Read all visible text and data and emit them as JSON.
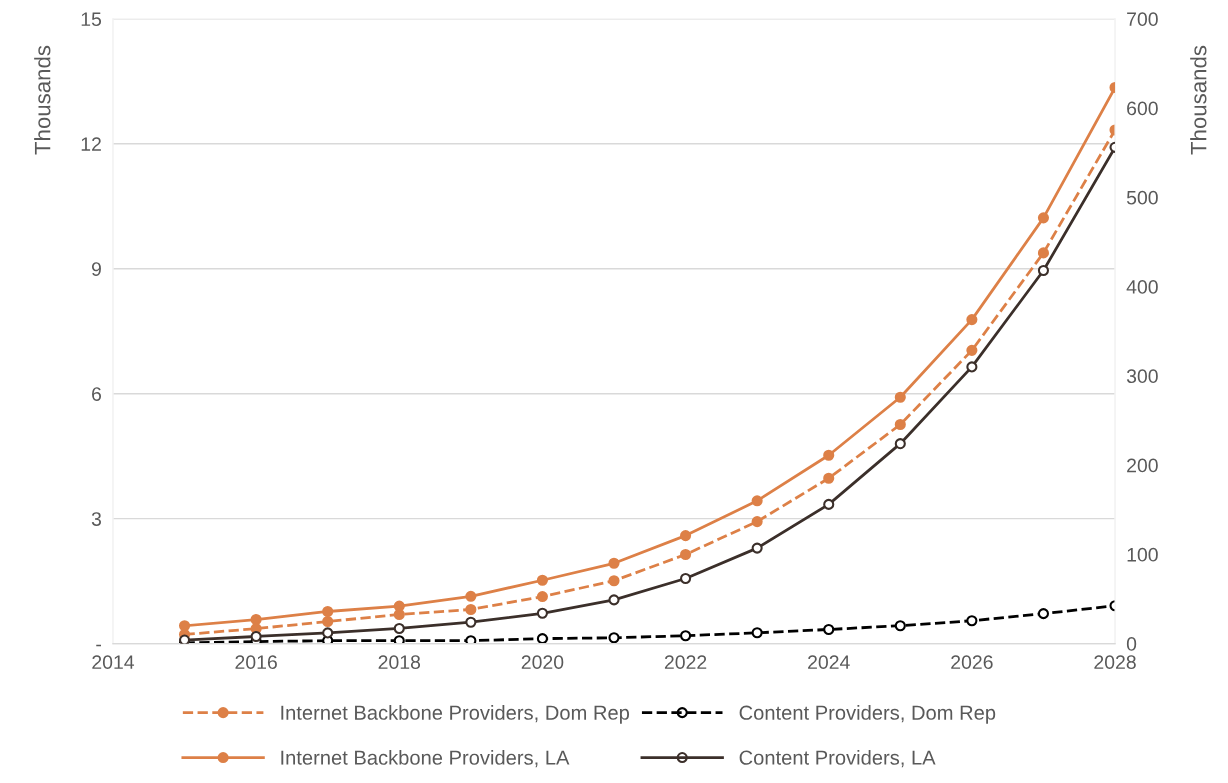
{
  "chart_data": {
    "type": "line",
    "x": [
      2015,
      2016,
      2017,
      2018,
      2019,
      2020,
      2021,
      2022,
      2023,
      2024,
      2025,
      2026,
      2027,
      2028
    ],
    "ylabel": "Thousands",
    "y2label": "Thousands",
    "xlim": [
      2014,
      2028
    ],
    "xticks": [
      2014,
      2016,
      2018,
      2020,
      2022,
      2024,
      2026,
      2028
    ],
    "ylim": [
      0,
      15
    ],
    "yticks": [
      {
        "value": 0,
        "label": "-"
      },
      3,
      6,
      9,
      12,
      15
    ],
    "y2lim": [
      0,
      700
    ],
    "y2ticks": [
      0,
      100,
      200,
      300,
      400,
      500,
      600,
      700
    ],
    "grid": "y",
    "legend": "bottom",
    "marker": "circle",
    "series": [
      {
        "name": "Internet Backbone Providers, Dom Rep",
        "color": "#dd8047",
        "line_style": "dashed",
        "values": [
          0.22,
          0.36,
          0.53,
          0.7,
          0.82,
          1.13,
          1.51,
          2.14,
          2.93,
          3.97,
          5.26,
          7.04,
          9.38,
          12.33
        ]
      },
      {
        "name": "Content Providers, Dom Rep",
        "color": "#000000",
        "line_style": "dashed",
        "values": [
          0.02,
          0.05,
          0.07,
          0.07,
          0.07,
          0.12,
          0.14,
          0.19,
          0.26,
          0.34,
          0.43,
          0.55,
          0.72,
          0.91
        ]
      },
      {
        "name": "Internet Backbone Providers, LA",
        "color": "#dd8047",
        "line_style": "solid",
        "axis": "y2",
        "values": [
          20,
          27,
          36,
          42,
          53,
          71,
          90,
          121,
          160,
          211,
          276,
          363,
          477,
          623
        ]
      },
      {
        "name": "Content Providers, LA",
        "color": "#3b2f2a",
        "line_style": "solid",
        "axis": "y2",
        "values": [
          4,
          8,
          12,
          17,
          24,
          34,
          49,
          73,
          107,
          156,
          224,
          310,
          418,
          556
        ]
      }
    ]
  }
}
